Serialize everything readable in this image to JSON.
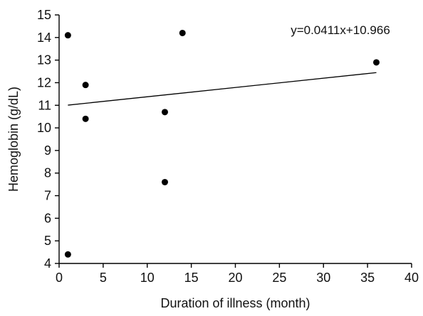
{
  "chart_data": {
    "type": "scatter",
    "xlabel": "Duration of illness (month)",
    "ylabel": "Hemoglobin (g/dL)",
    "xlim": [
      0,
      40
    ],
    "ylim": [
      4,
      15
    ],
    "xticks": [
      0,
      5,
      10,
      15,
      20,
      25,
      30,
      35,
      40
    ],
    "yticks": [
      4,
      5,
      6,
      7,
      8,
      9,
      10,
      11,
      12,
      13,
      14,
      15
    ],
    "grid": false,
    "points": [
      {
        "x": 1,
        "y": 14.1
      },
      {
        "x": 1,
        "y": 4.4
      },
      {
        "x": 3,
        "y": 11.9
      },
      {
        "x": 3,
        "y": 10.4
      },
      {
        "x": 12,
        "y": 10.7
      },
      {
        "x": 12,
        "y": 7.6
      },
      {
        "x": 14,
        "y": 14.2
      },
      {
        "x": 36,
        "y": 12.9
      }
    ],
    "trendline": {
      "slope": 0.0411,
      "intercept": 10.966,
      "x_range": [
        1,
        36
      ],
      "equation_label": "y=0.0411x+10.966"
    },
    "marker_color": "#000000",
    "line_color": "#000000"
  }
}
